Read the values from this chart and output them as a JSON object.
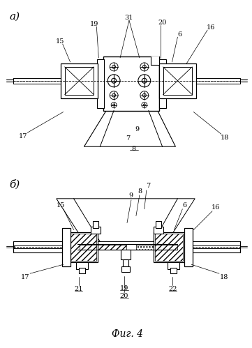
{
  "fig_label": "Фиг. 4",
  "label_a": "а)",
  "label_b": "б)",
  "bg_color": "#ffffff",
  "line_color": "#000000",
  "fig_width": 3.61,
  "fig_height": 4.99,
  "dpi": 100
}
